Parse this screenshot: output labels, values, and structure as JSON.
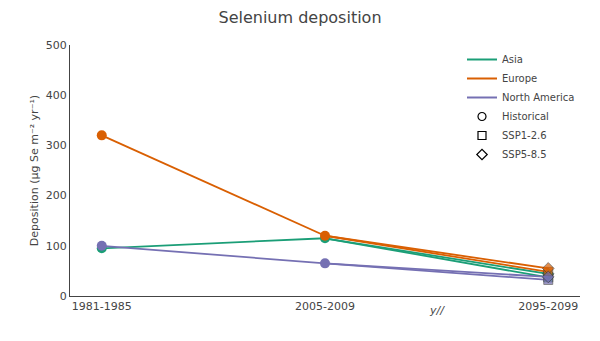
{
  "chart_data": {
    "type": "line",
    "title": "Selenium deposition",
    "y_label": "Deposition (μg Se m⁻² yr⁻¹)",
    "categories": [
      "1981-1985",
      "2005-2009",
      "2095-2099"
    ],
    "ylim": [
      0,
      500
    ],
    "yticks": [
      0,
      100,
      200,
      300,
      400,
      500
    ],
    "grid": false,
    "legend": "upper right",
    "markers": [
      {
        "name": "Historical",
        "marker": "circle"
      },
      {
        "name": "SSP1-2.6",
        "marker": "square"
      },
      {
        "name": "SSP5-8.5",
        "marker": "diamond"
      }
    ],
    "series": [
      {
        "name": "Asia",
        "color": "#1b9e77",
        "marker": "circle",
        "values": [
          95,
          115,
          null
        ],
        "projections": [
          {
            "name": "SSP1-2.6",
            "marker": "square",
            "values": [
              null,
              115,
              37
            ]
          },
          {
            "name": "SSP5-8.5",
            "marker": "diamond",
            "values": [
              null,
              115,
              44
            ]
          }
        ]
      },
      {
        "name": "Europe",
        "color": "#d95f02",
        "marker": "circle",
        "values": [
          320,
          120,
          null
        ],
        "projections": [
          {
            "name": "SSP1-2.6",
            "marker": "square",
            "values": [
              null,
              120,
              48
            ]
          },
          {
            "name": "SSP5-8.5",
            "marker": "diamond",
            "values": [
              null,
              120,
              55
            ]
          }
        ]
      },
      {
        "name": "North America",
        "color": "#7570b3",
        "marker": "circle",
        "values": [
          100,
          65,
          null
        ],
        "projections": [
          {
            "name": "SSP1-2.6",
            "marker": "square",
            "values": [
              null,
              65,
              32
            ]
          },
          {
            "name": "SSP5-8.5",
            "marker": "diamond",
            "values": [
              null,
              65,
              38
            ]
          }
        ]
      }
    ],
    "annotations": [
      {
        "text": "y//"
      }
    ]
  }
}
